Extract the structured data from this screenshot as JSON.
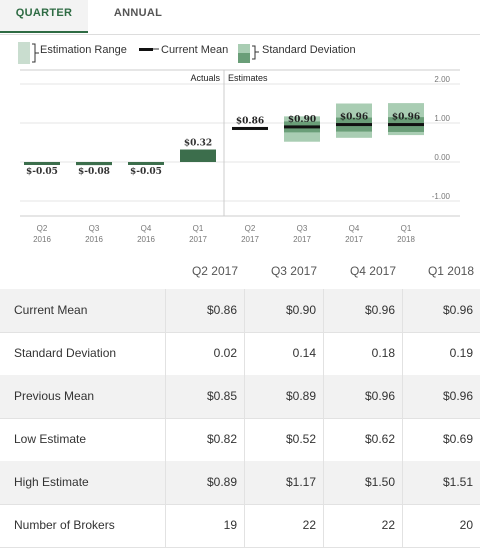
{
  "tabs": [
    {
      "label": "QUARTER",
      "active": true
    },
    {
      "label": "ANNUAL",
      "active": false
    }
  ],
  "legend": {
    "estimation_range": "Estimation Range",
    "current_mean": "Current Mean",
    "standard_deviation": "Standard Deviation"
  },
  "colors": {
    "actual": "#3c6e4c",
    "range": "#a9cdb3",
    "stddev": "#6a9e78",
    "mean": "#111111",
    "accent": "#2e6b43"
  },
  "chart_data": {
    "type": "bar",
    "section_labels": [
      "Actuals",
      "Estimates"
    ],
    "categories": [
      [
        "Q2",
        "2016"
      ],
      [
        "Q3",
        "2016"
      ],
      [
        "Q4",
        "2016"
      ],
      [
        "Q1",
        "2017"
      ],
      [
        "Q2",
        "2017"
      ],
      [
        "Q3",
        "2017"
      ],
      [
        "Q4",
        "2017"
      ],
      [
        "Q1",
        "2018"
      ]
    ],
    "actuals": [
      {
        "value": -0.05,
        "label": "$-0.05"
      },
      {
        "value": -0.08,
        "label": "$-0.08"
      },
      {
        "value": -0.05,
        "label": "$-0.05"
      },
      {
        "value": 0.32,
        "label": "$0.32"
      }
    ],
    "estimates": [
      {
        "mean": 0.86,
        "label": "$0.86",
        "low": 0.82,
        "high": 0.89,
        "stddev": 0.02
      },
      {
        "mean": 0.9,
        "label": "$0.90",
        "low": 0.52,
        "high": 1.17,
        "stddev": 0.14
      },
      {
        "mean": 0.96,
        "label": "$0.96",
        "low": 0.62,
        "high": 1.5,
        "stddev": 0.18
      },
      {
        "mean": 0.96,
        "label": "$0.96",
        "low": 0.69,
        "high": 1.51,
        "stddev": 0.19
      }
    ],
    "y_ticks": [
      {
        "value": 2,
        "label": "2.00"
      },
      {
        "value": 1,
        "label": "1.00"
      },
      {
        "value": 0,
        "label": "0.00"
      },
      {
        "value": -1,
        "label": "-1.00"
      }
    ],
    "ylim": [
      -1.3,
      2.1
    ]
  },
  "table": {
    "columns": [
      "Q2 2017",
      "Q3 2017",
      "Q4 2017",
      "Q1 2018"
    ],
    "rows": [
      {
        "label": "Current Mean",
        "values": [
          "$0.86",
          "$0.90",
          "$0.96",
          "$0.96"
        ]
      },
      {
        "label": "Standard Deviation",
        "values": [
          "0.02",
          "0.14",
          "0.18",
          "0.19"
        ]
      },
      {
        "label": "Previous Mean",
        "values": [
          "$0.85",
          "$0.89",
          "$0.96",
          "$0.96"
        ]
      },
      {
        "label": "Low Estimate",
        "values": [
          "$0.82",
          "$0.52",
          "$0.62",
          "$0.69"
        ]
      },
      {
        "label": "High Estimate",
        "values": [
          "$0.89",
          "$1.17",
          "$1.50",
          "$1.51"
        ]
      },
      {
        "label": "Number of Brokers",
        "values": [
          "19",
          "22",
          "22",
          "20"
        ]
      }
    ]
  }
}
